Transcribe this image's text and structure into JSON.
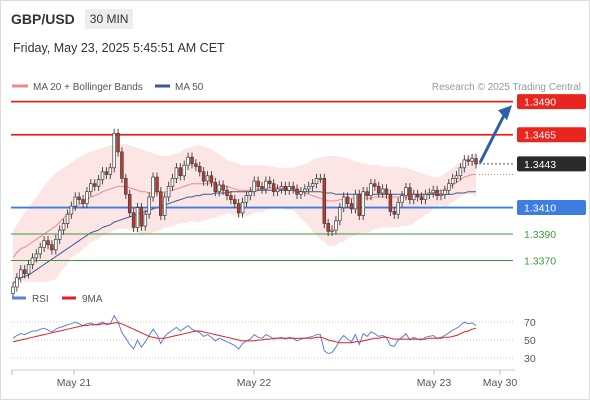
{
  "header": {
    "symbol": "GBP/USD",
    "timeframe": "30 MIN"
  },
  "datetime": "Friday, May 23, 2025 5:45:51 AM CET",
  "legend": {
    "ma20_bb": "MA 20 + Bollinger Bands",
    "ma50": "MA 50",
    "copyright": "Research © 2025 Trading Central"
  },
  "colors": {
    "resistance": "#e8251f",
    "support": "#3d7de0",
    "minor_support": "#3e9a3e",
    "up_candle": "#5a7d5a",
    "down_candle": "#c0392b",
    "candle": "#3c3c3c",
    "bb_fill": "#fbdcdc",
    "ma20": "#f08a8a",
    "ma50": "#3c5a8f",
    "rsi": "#5c7fd8",
    "rsi_ma": "#e02020",
    "arrow": "#2e5fa8",
    "last_tag": "#2a2a2a"
  },
  "rsi_legend": {
    "rsi": "RSI",
    "ma": "9MA"
  },
  "chart_data": [
    {
      "type": "candlestick",
      "title": "GBP/USD 30 MIN",
      "x_labels": [
        "May 21",
        "May 22",
        "May 23",
        "May 30"
      ],
      "ylim": [
        1.335,
        1.3495
      ],
      "last_price": 1.3443,
      "levels": [
        {
          "label": "1.3490",
          "value": 1.349,
          "kind": "resistance",
          "tag": true
        },
        {
          "label": "1.3465",
          "value": 1.3465,
          "kind": "resistance",
          "tag": true
        },
        {
          "label": "1.3410",
          "value": 1.341,
          "kind": "support",
          "tag": true
        },
        {
          "label": "1.3390",
          "value": 1.339,
          "kind": "minor_support",
          "tag": false
        },
        {
          "label": "1.3370",
          "value": 1.337,
          "kind": "minor_support",
          "tag": false
        }
      ],
      "target_arrow": {
        "from": 1.3443,
        "to": 1.3488
      },
      "close": [
        1.335,
        1.3357,
        1.3363,
        1.336,
        1.3367,
        1.3372,
        1.3375,
        1.338,
        1.3385,
        1.3382,
        1.3378,
        1.3386,
        1.3393,
        1.3398,
        1.3405,
        1.3411,
        1.3418,
        1.3416,
        1.3413,
        1.3422,
        1.3428,
        1.3426,
        1.3431,
        1.3437,
        1.3435,
        1.344,
        1.3466,
        1.3452,
        1.3432,
        1.342,
        1.3406,
        1.3395,
        1.341,
        1.3396,
        1.3405,
        1.3418,
        1.3433,
        1.3422,
        1.3404,
        1.3418,
        1.3426,
        1.3432,
        1.344,
        1.3434,
        1.3442,
        1.3448,
        1.3443,
        1.3441,
        1.3437,
        1.343,
        1.3434,
        1.3429,
        1.3422,
        1.3427,
        1.3423,
        1.3419,
        1.3416,
        1.3413,
        1.3406,
        1.3414,
        1.3419,
        1.3422,
        1.343,
        1.3426,
        1.3424,
        1.343,
        1.3428,
        1.3422,
        1.3424,
        1.3426,
        1.3423,
        1.3426,
        1.3424,
        1.342,
        1.3422,
        1.3424,
        1.3426,
        1.3428,
        1.3432,
        1.3432,
        1.3398,
        1.3392,
        1.3393,
        1.34,
        1.341,
        1.3418,
        1.3413,
        1.3409,
        1.342,
        1.3404,
        1.3422,
        1.3419,
        1.3428,
        1.3426,
        1.3421,
        1.3424,
        1.342,
        1.3407,
        1.3405,
        1.3414,
        1.3419,
        1.3425,
        1.3416,
        1.342,
        1.3418,
        1.3416,
        1.342,
        1.3421,
        1.3423,
        1.3419,
        1.342,
        1.3423,
        1.3428,
        1.3432,
        1.3434,
        1.344,
        1.3446,
        1.3445,
        1.3447,
        1.3443
      ],
      "ma20": [
        1.3372,
        1.3376,
        1.3379,
        1.338,
        1.3382,
        1.3384,
        1.3386,
        1.3388,
        1.339,
        1.3392,
        1.3394,
        1.3396,
        1.3399,
        1.3402,
        1.3405,
        1.3408,
        1.341,
        1.3412,
        1.3414,
        1.3416,
        1.3418,
        1.3419,
        1.342,
        1.3422,
        1.3423,
        1.3424,
        1.3425,
        1.3426,
        1.3426,
        1.3426,
        1.3425,
        1.3424,
        1.3423,
        1.3422,
        1.3422,
        1.3421,
        1.3421,
        1.3421,
        1.3421,
        1.3422,
        1.3422,
        1.3423,
        1.3424,
        1.3425,
        1.3426,
        1.3427,
        1.3428,
        1.3428,
        1.3428,
        1.3428,
        1.3428,
        1.3428,
        1.3427,
        1.3427,
        1.3426,
        1.3426,
        1.3425,
        1.3424,
        1.3423,
        1.3423,
        1.3423,
        1.3423,
        1.3424,
        1.3424,
        1.3424,
        1.3425,
        1.3425,
        1.3425,
        1.3425,
        1.3425,
        1.3424,
        1.3424,
        1.3424,
        1.3423,
        1.3422,
        1.3421,
        1.342,
        1.3419,
        1.3418,
        1.3417,
        1.3416,
        1.3415,
        1.3415,
        1.3415,
        1.3416,
        1.3416,
        1.3417,
        1.3417,
        1.3417,
        1.3417,
        1.3417,
        1.3417,
        1.3417,
        1.3418,
        1.3418,
        1.3418,
        1.3418,
        1.3418,
        1.3418,
        1.3418,
        1.3418,
        1.3418,
        1.3418,
        1.3418,
        1.3419,
        1.3419,
        1.3419,
        1.342,
        1.3421,
        1.3422,
        1.3423,
        1.3424,
        1.3425,
        1.3427,
        1.3429,
        1.3431,
        1.3433,
        1.3434,
        1.3435,
        1.3435
      ],
      "bb_upper": [
        1.3392,
        1.3397,
        1.3402,
        1.3406,
        1.341,
        1.3414,
        1.3418,
        1.3422,
        1.3426,
        1.343,
        1.3433,
        1.3436,
        1.3438,
        1.344,
        1.3442,
        1.3444,
        1.3446,
        1.3448,
        1.3449,
        1.3451,
        1.3452,
        1.3453,
        1.3454,
        1.3455,
        1.3456,
        1.3457,
        1.3457,
        1.3458,
        1.3458,
        1.3458,
        1.3457,
        1.3456,
        1.3455,
        1.3454,
        1.3453,
        1.3452,
        1.3451,
        1.345,
        1.3449,
        1.3449,
        1.3449,
        1.345,
        1.3451,
        1.3452,
        1.3454,
        1.3455,
        1.3456,
        1.3457,
        1.3457,
        1.3456,
        1.3455,
        1.3454,
        1.3452,
        1.345,
        1.3448,
        1.3446,
        1.3445,
        1.3444,
        1.3443,
        1.3442,
        1.3442,
        1.3442,
        1.3442,
        1.3442,
        1.3442,
        1.3442,
        1.3441,
        1.3441,
        1.344,
        1.344,
        1.344,
        1.344,
        1.344,
        1.3441,
        1.3442,
        1.3443,
        1.3444,
        1.3446,
        1.3447,
        1.3448,
        1.3448,
        1.3449,
        1.3449,
        1.3449,
        1.3448,
        1.3448,
        1.3447,
        1.3446,
        1.3445,
        1.3444,
        1.3443,
        1.3443,
        1.3442,
        1.3442,
        1.3442,
        1.3441,
        1.3441,
        1.3441,
        1.3441,
        1.3441,
        1.344,
        1.344,
        1.3439,
        1.3438,
        1.3437,
        1.3436,
        1.3435,
        1.3434,
        1.3433,
        1.3433,
        1.3434,
        1.3436,
        1.3438,
        1.344,
        1.3442,
        1.3444,
        1.3446,
        1.3448,
        1.345,
        1.3452
      ],
      "bb_lower": [
        1.3352,
        1.3354,
        1.3356,
        1.3354,
        1.3354,
        1.3354,
        1.3354,
        1.3354,
        1.3354,
        1.3354,
        1.3355,
        1.3356,
        1.336,
        1.3364,
        1.3368,
        1.3372,
        1.3374,
        1.3376,
        1.3379,
        1.3381,
        1.3384,
        1.3385,
        1.3386,
        1.3389,
        1.339,
        1.3391,
        1.3393,
        1.3394,
        1.3394,
        1.3394,
        1.3393,
        1.3392,
        1.3391,
        1.339,
        1.3391,
        1.339,
        1.3391,
        1.3392,
        1.3393,
        1.3395,
        1.3395,
        1.3396,
        1.3397,
        1.3398,
        1.3398,
        1.3399,
        1.34,
        1.3399,
        1.3399,
        1.34,
        1.3401,
        1.3402,
        1.3402,
        1.3404,
        1.3404,
        1.3406,
        1.3405,
        1.3404,
        1.3403,
        1.3404,
        1.3404,
        1.3404,
        1.3406,
        1.3406,
        1.3406,
        1.3408,
        1.3409,
        1.3409,
        1.341,
        1.341,
        1.3408,
        1.3408,
        1.3408,
        1.3405,
        1.3402,
        1.3399,
        1.3396,
        1.3392,
        1.3389,
        1.3386,
        1.3384,
        1.3381,
        1.3381,
        1.3381,
        1.3384,
        1.3384,
        1.3387,
        1.3388,
        1.3389,
        1.339,
        1.3391,
        1.3391,
        1.3392,
        1.3394,
        1.3394,
        1.3395,
        1.3395,
        1.3395,
        1.3395,
        1.3395,
        1.3396,
        1.3396,
        1.3397,
        1.3398,
        1.3401,
        1.3402,
        1.3405,
        1.3406,
        1.3409,
        1.3411,
        1.3412,
        1.341,
        1.3412,
        1.3414,
        1.3416,
        1.3418,
        1.342,
        1.342,
        1.342,
        1.3418
      ],
      "ma50": [
        1.3353,
        1.3355,
        1.3357,
        1.3358,
        1.3359,
        1.3361,
        1.3363,
        1.3365,
        1.3367,
        1.3369,
        1.3371,
        1.3373,
        1.3375,
        1.3377,
        1.3379,
        1.3381,
        1.3383,
        1.3385,
        1.3387,
        1.3389,
        1.3391,
        1.3392,
        1.3393,
        1.3395,
        1.3396,
        1.3397,
        1.3399,
        1.34,
        1.3401,
        1.3402,
        1.3403,
        1.3404,
        1.3405,
        1.3406,
        1.3407,
        1.3408,
        1.3409,
        1.341,
        1.3411,
        1.3412,
        1.3413,
        1.3414,
        1.3415,
        1.3416,
        1.3417,
        1.3418,
        1.3418,
        1.3419,
        1.3419,
        1.342,
        1.342,
        1.342,
        1.3421,
        1.3421,
        1.3421,
        1.3421,
        1.3422,
        1.3422,
        1.3422,
        1.3422,
        1.3422,
        1.3422,
        1.3422,
        1.3423,
        1.3423,
        1.3423,
        1.3423,
        1.3423,
        1.3423,
        1.3423,
        1.3423,
        1.3423,
        1.3423,
        1.3422,
        1.3422,
        1.3422,
        1.3422,
        1.3422,
        1.3422,
        1.3422,
        1.3421,
        1.3421,
        1.3421,
        1.342,
        1.342,
        1.342,
        1.342,
        1.342,
        1.342,
        1.342,
        1.342,
        1.342,
        1.342,
        1.342,
        1.342,
        1.342,
        1.342,
        1.342,
        1.342,
        1.342,
        1.342,
        1.342,
        1.342,
        1.342,
        1.342,
        1.342,
        1.342,
        1.342,
        1.342,
        1.342,
        1.342,
        1.342,
        1.342,
        1.342,
        1.3421,
        1.3421,
        1.3421,
        1.3422,
        1.3422,
        1.3422
      ]
    },
    {
      "type": "line",
      "title": "RSI",
      "y_ticks": [
        30,
        50,
        70
      ],
      "ylim": [
        20,
        80
      ],
      "series": [
        {
          "name": "RSI",
          "values": [
            52,
            55,
            57,
            56,
            58,
            60,
            60,
            62,
            63,
            61,
            59,
            62,
            64,
            65,
            67,
            68,
            70,
            68,
            66,
            68,
            69,
            67,
            68,
            70,
            67,
            68,
            77,
            70,
            58,
            52,
            45,
            40,
            50,
            42,
            48,
            55,
            62,
            56,
            46,
            54,
            58,
            61,
            64,
            60,
            63,
            66,
            62,
            60,
            58,
            54,
            56,
            53,
            49,
            52,
            50,
            48,
            46,
            44,
            40,
            46,
            49,
            51,
            56,
            53,
            52,
            56,
            54,
            51,
            52,
            53,
            51,
            53,
            52,
            49,
            51,
            52,
            53,
            54,
            56,
            56,
            38,
            35,
            36,
            42,
            50,
            55,
            51,
            48,
            56,
            45,
            57,
            54,
            59,
            57,
            54,
            55,
            53,
            44,
            43,
            50,
            53,
            57,
            50,
            53,
            51,
            50,
            53,
            54,
            55,
            52,
            53,
            55,
            58,
            61,
            63,
            66,
            70,
            68,
            69,
            66
          ]
        },
        {
          "name": "9MA",
          "values": [
            48,
            49,
            50,
            51,
            52,
            53,
            54,
            55,
            56,
            57,
            58,
            59,
            60,
            61,
            62,
            63,
            64,
            65,
            66,
            66,
            67,
            67,
            67,
            68,
            68,
            68,
            69,
            69,
            68,
            66,
            64,
            62,
            60,
            58,
            56,
            54,
            53,
            52,
            52,
            52,
            53,
            54,
            55,
            56,
            57,
            58,
            59,
            60,
            60,
            59,
            58,
            57,
            56,
            55,
            54,
            53,
            52,
            51,
            50,
            49,
            49,
            49,
            49,
            50,
            50,
            51,
            51,
            52,
            52,
            52,
            52,
            52,
            52,
            52,
            52,
            52,
            52,
            52,
            53,
            53,
            52,
            50,
            49,
            48,
            47,
            47,
            47,
            47,
            48,
            48,
            49,
            50,
            51,
            52,
            52,
            53,
            53,
            52,
            51,
            51,
            51,
            51,
            51,
            51,
            51,
            51,
            51,
            52,
            52,
            52,
            52,
            53,
            53,
            54,
            55,
            57,
            59,
            60,
            62,
            63
          ]
        }
      ]
    }
  ]
}
